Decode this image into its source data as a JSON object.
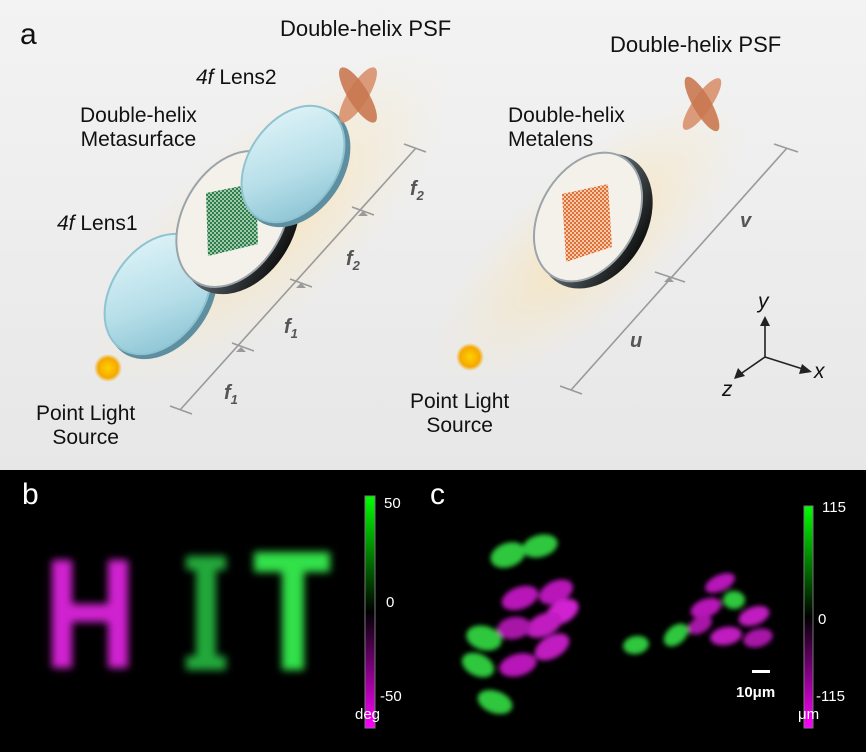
{
  "panel_a": {
    "panel_letter": "a",
    "left": {
      "psf_title": "Double-helix PSF",
      "lens2_f": "4f",
      "lens2_name": "Lens2",
      "metasurface_line1": "Double-helix",
      "metasurface_line2": "Metasurface",
      "lens1_f": "4f",
      "lens1_name": "Lens1",
      "source_line1": "Point Light",
      "source_line2": "Source",
      "dim_f1_a": "f",
      "dim_f1_a_sub": "1",
      "dim_f1_b": "f",
      "dim_f1_b_sub": "1",
      "dim_f2_a": "f",
      "dim_f2_a_sub": "2",
      "dim_f2_b": "f",
      "dim_f2_b_sub": "2"
    },
    "right": {
      "psf_title": "Double-helix PSF",
      "metalens_line1": "Double-helix",
      "metalens_line2": "Metalens",
      "source_line1": "Point Light",
      "source_line2": "Source",
      "dim_u": "u",
      "dim_v": "v"
    },
    "axes": {
      "x": "x",
      "y": "y",
      "z": "z"
    },
    "colors": {
      "metasurface": "#2e7d4f",
      "metalens": "#e0703a",
      "psf": "#d08060",
      "source": "#f5a800"
    }
  },
  "panel_b": {
    "panel_letter": "b",
    "letters": [
      "H",
      "I",
      "T"
    ],
    "letter_colors": [
      "#d020d0",
      "#22a83a",
      "#33e04a"
    ],
    "colorbar": {
      "max": "50",
      "mid": "0",
      "min": "-50",
      "unit": "deg",
      "top_color": "#00ff00",
      "bottom_color": "#ff00ff"
    }
  },
  "panel_c": {
    "panel_letter": "c",
    "scale_bar": "10μm",
    "colorbar": {
      "max": "115",
      "mid": "0",
      "min": "-115",
      "unit": "μm",
      "top_color": "#00ff00",
      "bottom_color": "#ff00ff"
    }
  }
}
